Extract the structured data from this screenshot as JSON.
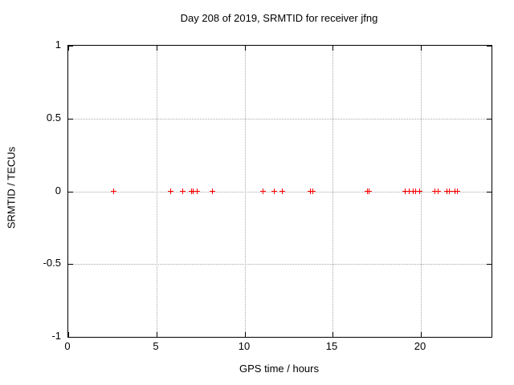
{
  "chart_data": {
    "type": "scatter",
    "title": "Day 208 of 2019, SRMTID for receiver jfng",
    "xlabel": "GPS time / hours",
    "ylabel": "SRMTID / TECUs",
    "xlim": [
      0,
      24
    ],
    "ylim": [
      -1,
      1
    ],
    "xticks": [
      0,
      5,
      10,
      15,
      20
    ],
    "yticks": [
      1,
      0.5,
      0,
      -0.5,
      -1
    ],
    "grid": "dotted gridlines at labeled ticks, inward tick marks mirrored on all borders",
    "legend_position": "none",
    "marker": "plus",
    "marker_color": "#ff0000",
    "grid_color": "#a9a9a9",
    "border_color": "#000000",
    "background_color": "#ffffff",
    "series": [
      {
        "name": "SRMTID",
        "x": [
          2.6,
          5.83,
          6.51,
          7.0,
          7.12,
          7.34,
          8.21,
          11.07,
          11.71,
          12.17,
          13.73,
          13.91,
          16.97,
          17.09,
          19.12,
          19.34,
          19.57,
          19.71,
          19.94,
          20.8,
          20.99,
          21.49,
          21.62,
          21.94,
          22.08
        ],
        "y": [
          0,
          0,
          0,
          0,
          0,
          0,
          0,
          0,
          0,
          0,
          0,
          0,
          0,
          0,
          0,
          0,
          0,
          0,
          0,
          0,
          0,
          0,
          0,
          0,
          0
        ]
      }
    ]
  }
}
